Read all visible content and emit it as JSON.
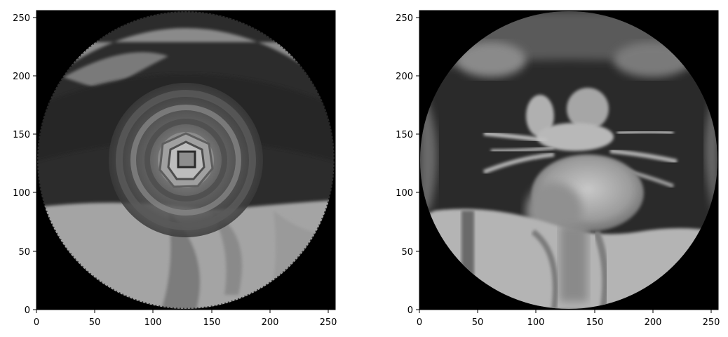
{
  "figure": {
    "panels": [
      {
        "name": "left-panel",
        "kind": "reconstruction with swirl artifacts",
        "xticks": [
          "0",
          "50",
          "100",
          "150",
          "200",
          "250"
        ],
        "yticks": [
          "0",
          "50",
          "100",
          "150",
          "200",
          "250"
        ],
        "xlim": [
          0,
          256
        ],
        "ylim": [
          0,
          256
        ]
      },
      {
        "name": "right-panel",
        "kind": "coronal thoracic MRI",
        "xticks": [
          "0",
          "50",
          "100",
          "150",
          "200",
          "250"
        ],
        "yticks": [
          "0",
          "50",
          "100",
          "150",
          "200",
          "250"
        ],
        "xlim": [
          0,
          256
        ],
        "ylim": [
          0,
          256
        ]
      }
    ],
    "colors": {
      "background": "#000000",
      "lung_dark": "#2a2a2a",
      "tissue_gray": "#9a9a9a",
      "bright": "#d0d0d0"
    }
  }
}
